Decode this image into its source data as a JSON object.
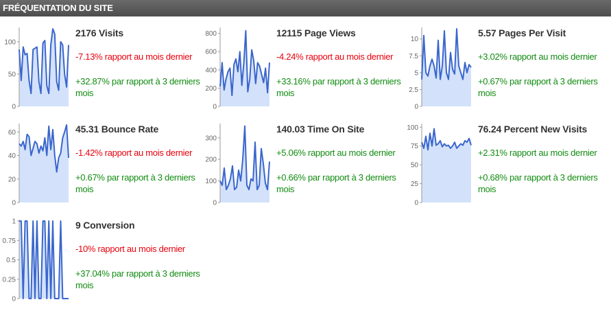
{
  "header": {
    "title": "FRÉQUENTATION DU SITE"
  },
  "colors": {
    "line": "#3a66cc",
    "fill": "#d3e2fa",
    "negative": "#e8000d",
    "positive": "#128c12",
    "header_bg": "#555555"
  },
  "metrics": [
    {
      "title": "2176 Visits",
      "month_change": "-7.13% rapport au mois dernier",
      "month_positive": false,
      "period_change": "+32.87% par rapport à 3 derniers mois",
      "chart_data": {
        "type": "area",
        "ylim": [
          0,
          120
        ],
        "yticks": [
          0,
          50,
          100
        ],
        "ytick_labels": [
          "0",
          "50",
          "100"
        ],
        "values": [
          88,
          40,
          92,
          80,
          82,
          40,
          20,
          88,
          90,
          92,
          38,
          20,
          98,
          102,
          32,
          20,
          95,
          120,
          112,
          38,
          25,
          100,
          95,
          50,
          30,
          95
        ]
      }
    },
    {
      "title": "12115 Page Views",
      "month_change": "-4.24% rapport au mois dernier",
      "month_positive": false,
      "period_change": "+33.16% par rapport à 3 derniers mois",
      "chart_data": {
        "type": "area",
        "ylim": [
          0,
          850
        ],
        "yticks": [
          0,
          200,
          400,
          600,
          800
        ],
        "ytick_labels": [
          "0",
          "200",
          "400",
          "600",
          "800"
        ],
        "values": [
          220,
          480,
          180,
          300,
          380,
          420,
          120,
          460,
          520,
          380,
          600,
          230,
          480,
          830,
          160,
          300,
          620,
          500,
          250,
          480,
          440,
          350,
          260,
          420,
          150,
          480
        ]
      }
    },
    {
      "title": "5.57 Pages Per Visit",
      "month_change": "+3.02% rapport au mois dernier",
      "month_positive": true,
      "period_change": "+0.67% par rapport à 3 derniers mois",
      "chart_data": {
        "type": "area",
        "ylim": [
          0,
          11.5
        ],
        "yticks": [
          0,
          2.5,
          5,
          7.5,
          10
        ],
        "ytick_labels": [
          "0",
          "2.5",
          "5",
          "7.5",
          "10"
        ],
        "values": [
          4,
          10.5,
          5,
          4.5,
          6,
          7,
          6,
          4.2,
          9.8,
          4,
          6,
          11.2,
          5,
          4,
          8,
          5.5,
          4.8,
          11.5,
          6,
          5,
          4,
          6.5,
          5,
          6.2,
          5.8
        ]
      }
    },
    {
      "title": "45.31 Bounce Rate",
      "month_change": "-1.42% rapport au mois dernier",
      "month_positive": false,
      "period_change": "+0.67% par rapport à 3 derniers mois",
      "chart_data": {
        "type": "area",
        "ylim": [
          0,
          66
        ],
        "yticks": [
          0,
          20,
          40,
          60
        ],
        "ytick_labels": [
          "0",
          "20",
          "40",
          "60"
        ],
        "values": [
          50,
          48,
          52,
          45,
          58,
          56,
          40,
          46,
          52,
          50,
          42,
          48,
          44,
          55,
          40,
          65,
          45,
          62,
          40,
          26,
          38,
          42,
          55,
          60,
          66,
          38
        ]
      }
    },
    {
      "title": "140.03 Time On Site",
      "month_change": "+5.06% rapport au mois dernier",
      "month_positive": true,
      "period_change": "+0.66% par rapport à 3 derniers mois",
      "chart_data": {
        "type": "area",
        "ylim": [
          0,
          360
        ],
        "yticks": [
          0,
          100,
          200,
          300
        ],
        "ytick_labels": [
          "0",
          "100",
          "200",
          "300"
        ],
        "values": [
          100,
          80,
          160,
          60,
          80,
          110,
          170,
          60,
          70,
          150,
          100,
          200,
          355,
          80,
          60,
          110,
          100,
          280,
          60,
          80,
          250,
          180,
          90,
          60,
          190
        ]
      }
    },
    {
      "title": "76.24 Percent New Visits",
      "month_change": "+2.31% rapport au mois dernier",
      "month_positive": true,
      "period_change": "+0.68% par rapport à 3 derniers mois",
      "chart_data": {
        "type": "area",
        "ylim": [
          0,
          103
        ],
        "yticks": [
          0,
          25,
          50,
          75,
          100
        ],
        "ytick_labels": [
          "0",
          "25",
          "50",
          "75",
          "100"
        ],
        "values": [
          80,
          72,
          88,
          70,
          92,
          75,
          98,
          76,
          78,
          82,
          74,
          78,
          75,
          76,
          72,
          75,
          80,
          72,
          75,
          78,
          76,
          82,
          80,
          85,
          76
        ]
      }
    },
    {
      "title": "9 Conversion",
      "month_change": "-10% rapport au mois dernier",
      "month_positive": false,
      "period_change": "+37.04% par rapport à 3 derniers mois",
      "chart_data": {
        "type": "area",
        "ylim": [
          0,
          1
        ],
        "yticks": [
          0,
          0.25,
          0.5,
          0.75,
          1
        ],
        "ytick_labels": [
          "0",
          "0.25",
          "0.5",
          "0.75",
          "1"
        ],
        "values": [
          1,
          1,
          0,
          1,
          1,
          0,
          0,
          1,
          0,
          1,
          0,
          0,
          1,
          1,
          0,
          1,
          0,
          1,
          0,
          0,
          0,
          1,
          0,
          0,
          0,
          0
        ]
      }
    }
  ]
}
